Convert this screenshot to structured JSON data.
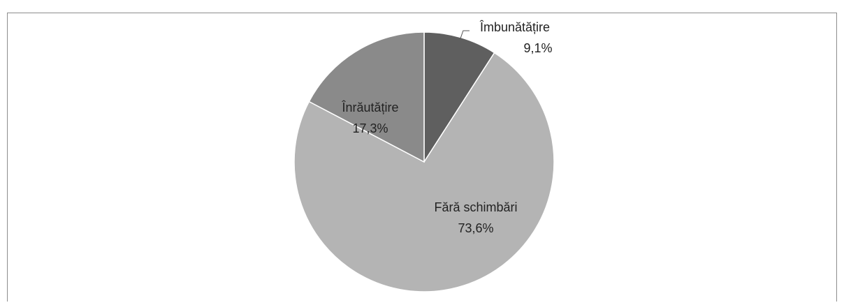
{
  "chart_data": {
    "type": "pie",
    "categories": [
      "Îmbunătățire",
      "Fără schimbări",
      "Înrăutățire"
    ],
    "values": [
      9.1,
      73.6,
      17.3
    ],
    "value_labels": [
      "9,1%",
      "73,6%",
      "17,3%"
    ],
    "colors": [
      "#5f5f5f",
      "#b4b4b4",
      "#8a8a8a"
    ]
  }
}
